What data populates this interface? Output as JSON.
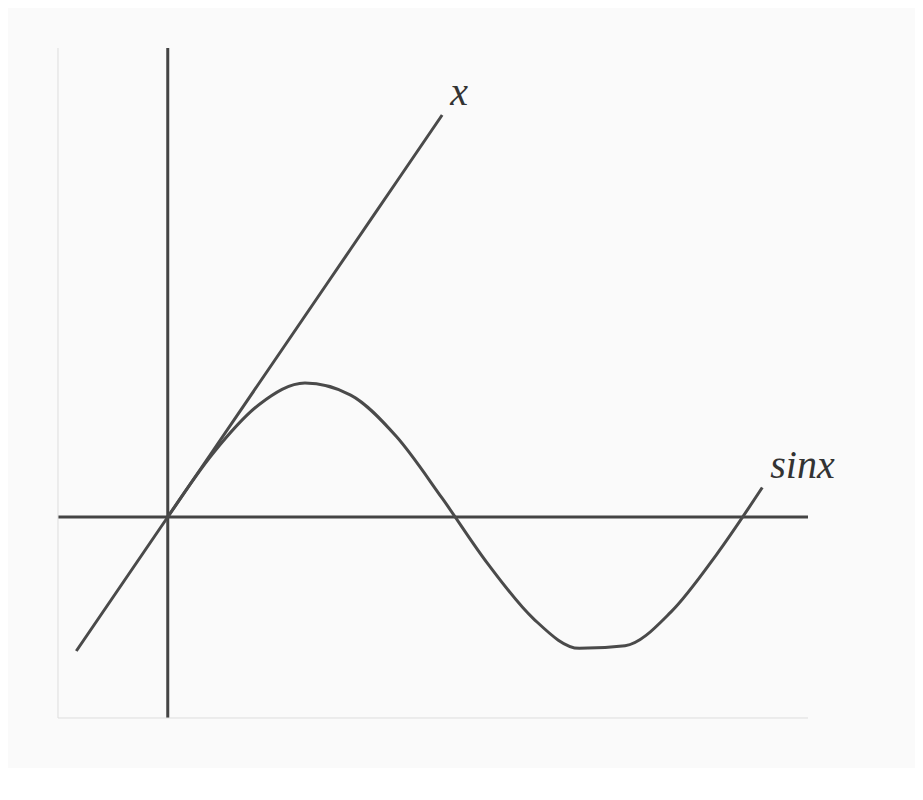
{
  "chart_data": {
    "type": "line",
    "x": [
      -1,
      -0.5,
      0,
      0.5,
      1,
      1.5,
      2,
      2.5,
      3,
      3.5,
      4,
      4.5,
      5,
      5.5,
      6,
      6.5
    ],
    "series": [
      {
        "name": "x",
        "color": "#4a4a4a",
        "values": [
          -1,
          -0.5,
          0,
          0.5,
          1,
          1.5,
          2,
          2.5,
          3,
          null,
          null,
          null,
          null,
          null,
          null,
          null
        ]
      },
      {
        "name": "sinx",
        "color": "#4a4a4a",
        "values": [
          null,
          null,
          0,
          0.48,
          0.84,
          1.0,
          0.91,
          0.6,
          0.14,
          -0.35,
          -0.76,
          -0.98,
          -0.96,
          -0.71,
          -0.28,
          0.22
        ]
      }
    ],
    "xlim": [
      -1.2,
      7
    ],
    "ylim": [
      -1.5,
      3.5
    ],
    "tick_labels": false
  }
}
